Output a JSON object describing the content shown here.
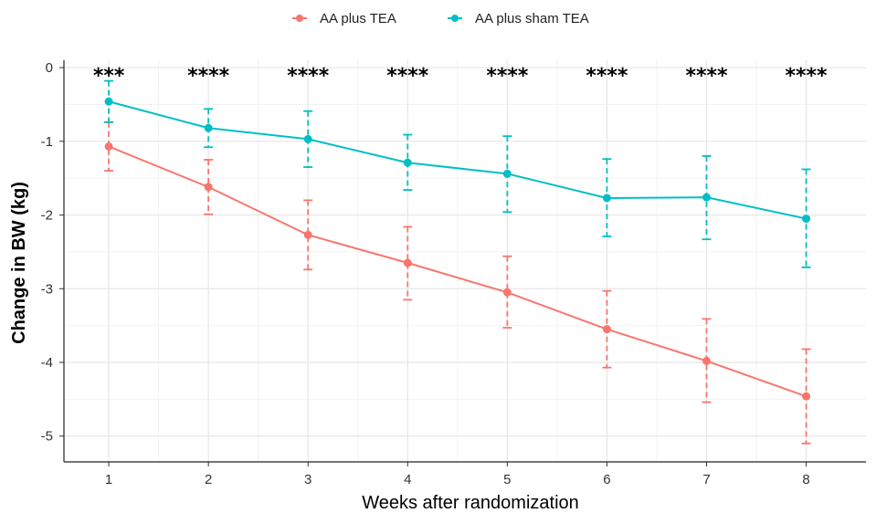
{
  "chart_data": {
    "type": "line",
    "xlabel": "Weeks after randomization",
    "ylabel": "Change in BW (kg)",
    "x": [
      1,
      2,
      3,
      4,
      5,
      6,
      7,
      8
    ],
    "xlim": [
      0.55,
      8.6
    ],
    "ylim": [
      -5.35,
      0.1
    ],
    "yticks": [
      0,
      -1,
      -2,
      -3,
      -4,
      -5
    ],
    "grid": true,
    "legend_position": "top",
    "series": [
      {
        "name": "AA plus TEA",
        "color": "#F8766D",
        "values": [
          -1.07,
          -1.62,
          -2.27,
          -2.65,
          -3.05,
          -3.55,
          -3.98,
          -4.46
        ],
        "err_low": [
          -1.4,
          -1.99,
          -2.74,
          -3.15,
          -3.53,
          -4.07,
          -4.54,
          -5.1
        ],
        "err_high": [
          -0.74,
          -1.25,
          -1.8,
          -2.16,
          -2.56,
          -3.03,
          -3.41,
          -3.82
        ]
      },
      {
        "name": "AA plus sham TEA",
        "color": "#00BFC4",
        "values": [
          -0.46,
          -0.82,
          -0.97,
          -1.29,
          -1.44,
          -1.77,
          -1.76,
          -2.05
        ],
        "err_low": [
          -0.74,
          -1.08,
          -1.35,
          -1.66,
          -1.96,
          -2.29,
          -2.33,
          -2.71
        ],
        "err_high": [
          -0.18,
          -0.56,
          -0.59,
          -0.91,
          -0.93,
          -1.24,
          -1.2,
          -1.38
        ]
      }
    ],
    "annotations": [
      "***",
      "****",
      "****",
      "****",
      "****",
      "****",
      "****",
      "****"
    ]
  }
}
